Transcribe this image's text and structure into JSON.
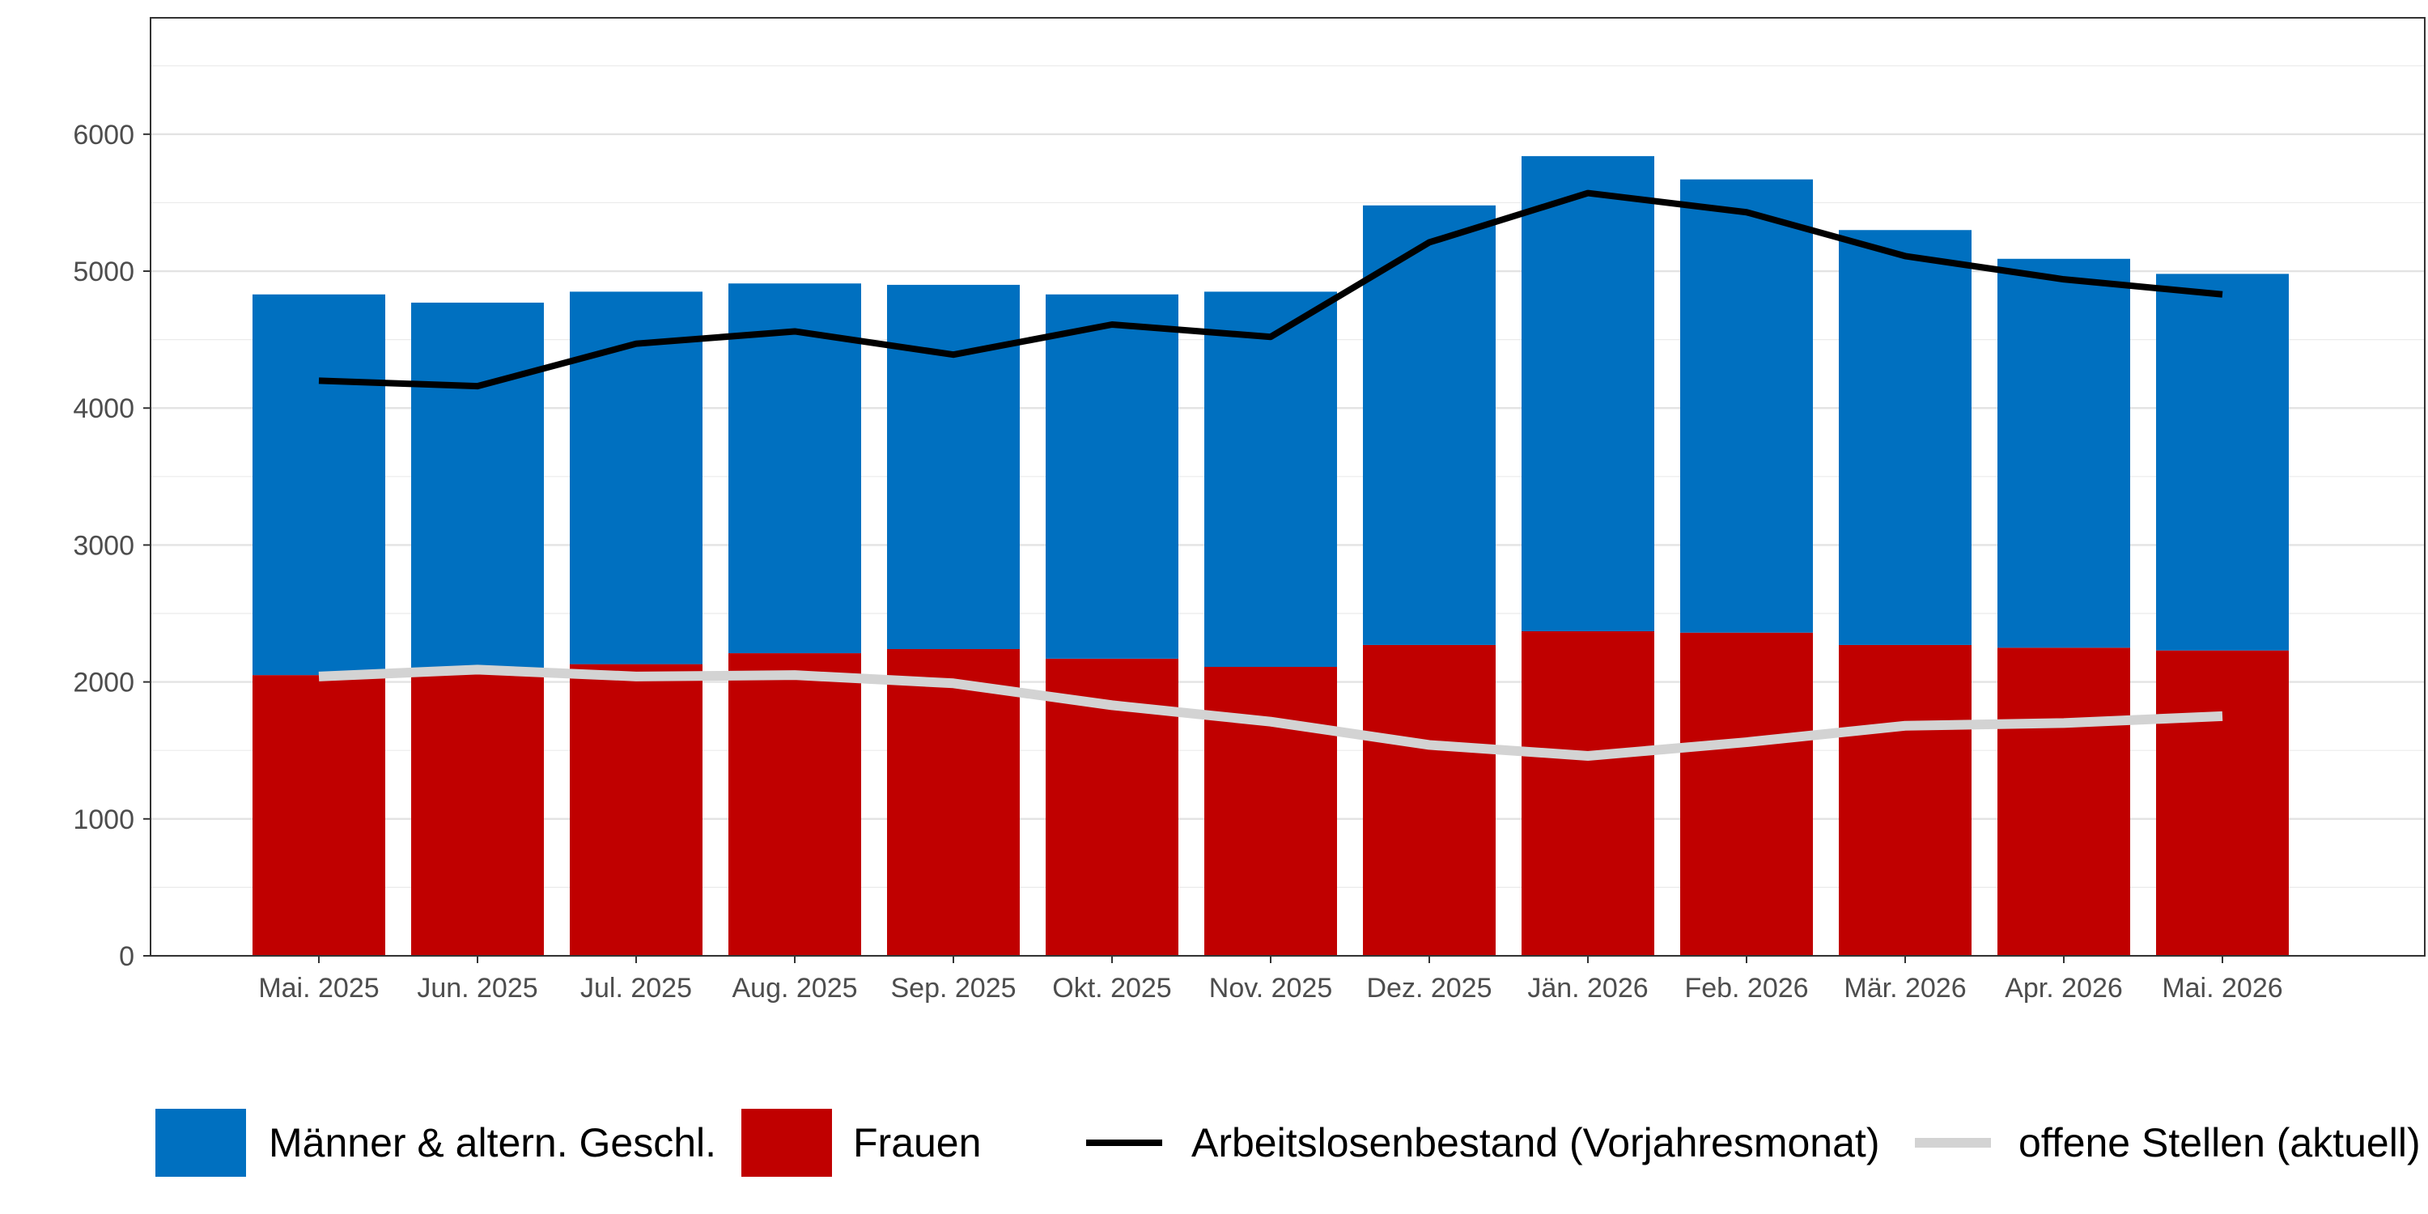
{
  "chart_data": {
    "type": "bar",
    "stacked": true,
    "categories": [
      "Mai. 2025",
      "Jun. 2025",
      "Jul. 2025",
      "Aug. 2025",
      "Sep. 2025",
      "Okt. 2025",
      "Nov. 2025",
      "Dez. 2025",
      "Jän. 2026",
      "Feb. 2026",
      "Mär. 2026",
      "Apr. 2026",
      "Mai. 2026"
    ],
    "series": [
      {
        "name": "Frauen",
        "kind": "bar",
        "color": "#c00000",
        "values": [
          2050,
          2090,
          2130,
          2210,
          2240,
          2170,
          2110,
          2270,
          2370,
          2360,
          2270,
          2250,
          2230
        ]
      },
      {
        "name": "Männer & altern. Geschl.",
        "kind": "bar",
        "color": "#0070c0",
        "values": [
          2780,
          2680,
          2720,
          2700,
          2660,
          2660,
          2740,
          3210,
          3470,
          3310,
          3030,
          2840,
          2750
        ]
      },
      {
        "name": "Arbeitslosenbestand (Vorjahresmonat)",
        "kind": "line",
        "color": "#000000",
        "values": [
          4200,
          4160,
          4470,
          4560,
          4390,
          4610,
          4520,
          5210,
          5570,
          5430,
          5110,
          4940,
          4830
        ]
      },
      {
        "name": "offene Stellen (aktuell)",
        "kind": "line",
        "color": "#d3d3d3",
        "values": [
          2040,
          2090,
          2040,
          2050,
          1990,
          1830,
          1710,
          1540,
          1460,
          1560,
          1680,
          1700,
          1750
        ]
      }
    ],
    "title": "",
    "xlabel": "",
    "ylabel": "",
    "ylim": [
      0,
      6850
    ],
    "yticks": [
      0,
      1000,
      2000,
      3000,
      4000,
      5000,
      6000
    ],
    "grid": true,
    "legend_position": "bottom",
    "legend_order": [
      "Männer & altern. Geschl.",
      "Frauen",
      "Arbeitslosenbestand (Vorjahresmonat)",
      "offene Stellen (aktuell)"
    ]
  }
}
